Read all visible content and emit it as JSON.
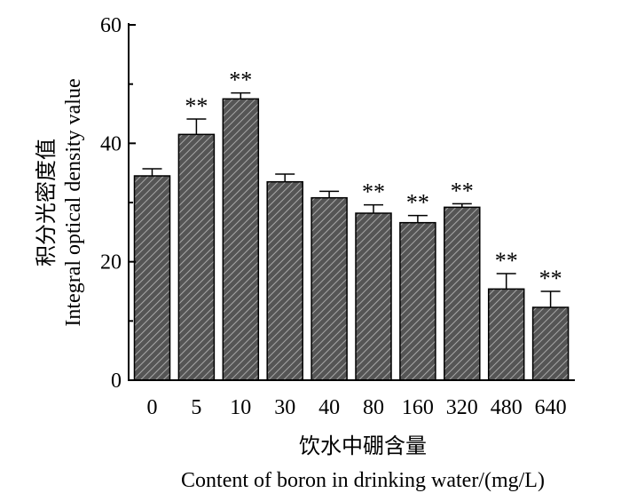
{
  "chart_data": {
    "type": "bar",
    "categories": [
      "0",
      "5",
      "10",
      "30",
      "40",
      "80",
      "160",
      "320",
      "480",
      "640"
    ],
    "values": [
      34.5,
      41.5,
      47.5,
      33.5,
      30.8,
      28.2,
      26.6,
      29.2,
      15.4,
      12.3
    ],
    "errors": [
      1.2,
      2.6,
      1.0,
      1.3,
      1.1,
      1.4,
      1.2,
      0.6,
      2.6,
      2.7
    ],
    "annotations": [
      "",
      "**",
      "**",
      "",
      "",
      "**",
      "**",
      "**",
      "**",
      "**"
    ],
    "ylim": [
      0,
      60
    ],
    "yticks": [
      0,
      20,
      40,
      60
    ],
    "ylabel_cn": "积分光密度值",
    "ylabel_en": "Integral optical density value",
    "xlabel_cn": "饮水中硼含量",
    "xlabel_en": "Content of boron in drinking water/(mg/L)",
    "bar_fill": "#555555",
    "hatch_color": "#a8a8a8",
    "axis_color": "#000000",
    "grid": false,
    "legend": "none"
  }
}
